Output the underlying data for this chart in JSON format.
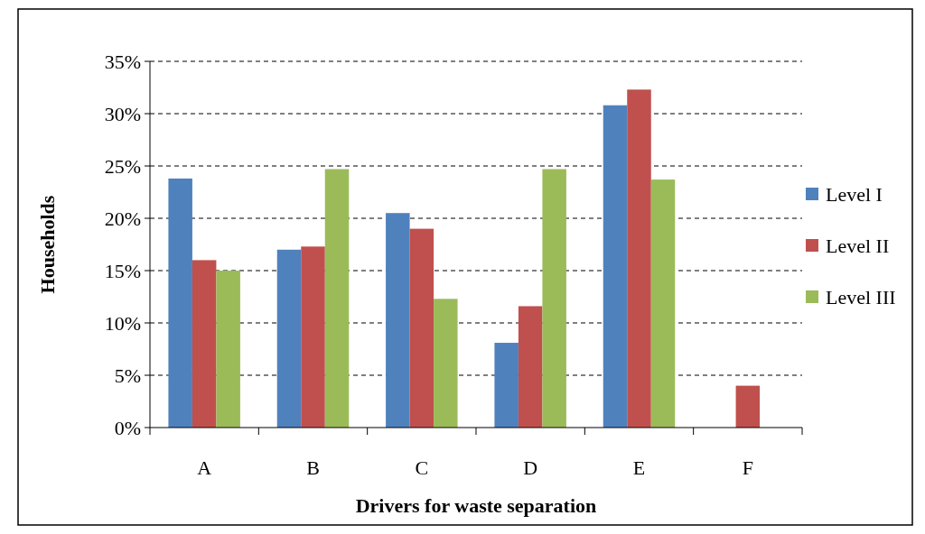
{
  "chart_data": {
    "type": "bar",
    "xlabel": "Drivers for waste separation",
    "ylabel": "Households",
    "categories": [
      "A",
      "B",
      "C",
      "D",
      "E",
      "F"
    ],
    "series": [
      {
        "name": "Level I",
        "color": "#4f81bd",
        "values": [
          23.8,
          17,
          20.5,
          8.1,
          30.8,
          0
        ]
      },
      {
        "name": "Level II",
        "color": "#c0504d",
        "values": [
          16,
          17.3,
          19,
          11.6,
          32.3,
          4
        ]
      },
      {
        "name": "Level III",
        "color": "#9bbb59",
        "values": [
          15,
          24.7,
          12.3,
          24.7,
          23.7,
          0
        ]
      }
    ],
    "ylim": [
      0,
      35
    ],
    "yticks": [
      {
        "value": 0,
        "label": "0%"
      },
      {
        "value": 5,
        "label": "5%"
      },
      {
        "value": 10,
        "label": "10%"
      },
      {
        "value": 15,
        "label": "15%"
      },
      {
        "value": 20,
        "label": "20%"
      },
      {
        "value": 25,
        "label": "25%"
      },
      {
        "value": 30,
        "label": "30%"
      },
      {
        "value": 35,
        "label": "35%"
      }
    ],
    "grid": "y",
    "legend": "right"
  }
}
